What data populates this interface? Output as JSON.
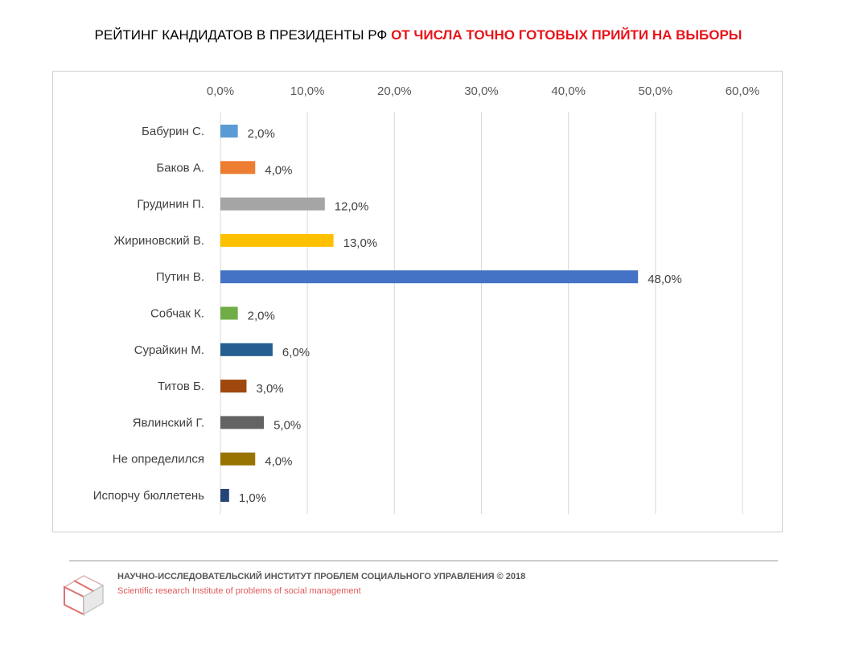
{
  "title": {
    "prefix": "РЕЙТИНГ КАНДИДАТОВ В ПРЕЗИДЕНТЫ РФ ",
    "accent": "ОТ ЧИСЛА ТОЧНО ГОТОВЫХ ПРИЙТИ НА ВЫБОРЫ"
  },
  "colors": {
    "title_accent": "#e8141b",
    "gridline": "#d9d9d9",
    "frame": "#d0d0d0"
  },
  "chart_data": {
    "type": "bar",
    "orientation": "horizontal",
    "categories": [
      "Бабурин С.",
      "Баков А.",
      "Грудинин П.",
      "Жириновский В.",
      "Путин В.",
      "Собчак К.",
      "Сурайкин М.",
      "Титов Б.",
      "Явлинский Г.",
      "Не определился",
      "Испорчу бюллетень"
    ],
    "values": [
      2.0,
      4.0,
      12.0,
      13.0,
      48.0,
      2.0,
      6.0,
      3.0,
      5.0,
      4.0,
      1.0
    ],
    "value_labels": [
      "2,0%",
      "4,0%",
      "12,0%",
      "13,0%",
      "48,0%",
      "2,0%",
      "6,0%",
      "3,0%",
      "5,0%",
      "4,0%",
      "1,0%"
    ],
    "bar_colors": [
      "#5b9bd5",
      "#ed7d31",
      "#a5a5a5",
      "#ffc000",
      "#4472c4",
      "#70ad47",
      "#255e91",
      "#9e480e",
      "#636363",
      "#997300",
      "#264478"
    ],
    "xlim": [
      0,
      60
    ],
    "ticks": [
      0,
      10,
      20,
      30,
      40,
      50,
      60
    ],
    "tick_labels": [
      "0,0%",
      "10,0%",
      "20,0%",
      "30,0%",
      "40,0%",
      "50,0%",
      "60,0%"
    ],
    "axis_position": "top",
    "grid": true,
    "legend": false
  },
  "footer": {
    "org_ru": "НАУЧНО-ИССЛЕДОВАТЕЛЬСКИЙ ИНСТИТУТ ПРОБЛЕМ СОЦИАЛЬНОГО УПРАВЛЕНИЯ   © 2018",
    "org_en": "Scientific research Institute of problems of social management",
    "logo_icon": "cube-logo-icon"
  }
}
